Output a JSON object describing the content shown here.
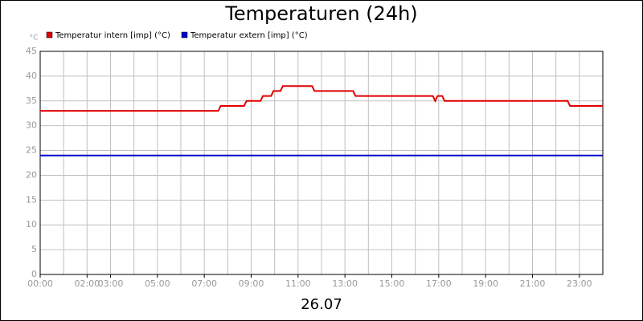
{
  "chart_data": {
    "type": "line",
    "title": "Temperaturen (24h)",
    "y_unit": "°C",
    "x_caption": "26.07",
    "xlim": [
      0,
      24
    ],
    "ylim": [
      0,
      45
    ],
    "yticks": [
      0,
      5,
      10,
      15,
      20,
      25,
      30,
      35,
      40,
      45
    ],
    "xticks": [
      {
        "value": 0,
        "label": "00:00"
      },
      {
        "value": 2,
        "label": "02:00"
      },
      {
        "value": 3,
        "label": "03:00"
      },
      {
        "value": 5,
        "label": "05:00"
      },
      {
        "value": 7,
        "label": "07:00"
      },
      {
        "value": 9,
        "label": "09:00"
      },
      {
        "value": 11,
        "label": "11:00"
      },
      {
        "value": 13,
        "label": "13:00"
      },
      {
        "value": 15,
        "label": "15:00"
      },
      {
        "value": 17,
        "label": "17:00"
      },
      {
        "value": 19,
        "label": "19:00"
      },
      {
        "value": 21,
        "label": "21:00"
      },
      {
        "value": 23,
        "label": "23:00"
      }
    ],
    "xgrid": [
      0,
      1,
      2,
      3,
      4,
      5,
      6,
      7,
      8,
      9,
      10,
      11,
      12,
      13,
      14,
      15,
      16,
      17,
      18,
      19,
      20,
      21,
      22,
      23,
      24
    ],
    "grid": true,
    "series": [
      {
        "name": "Temperatur intern [imp] (°C)",
        "color": "#e00000",
        "x": [
          0,
          7.6,
          7.7,
          8.7,
          8.8,
          9.4,
          9.5,
          9.85,
          9.95,
          10.25,
          10.35,
          11.6,
          11.7,
          13.35,
          13.45,
          16.75,
          16.85,
          16.95,
          17.15,
          17.25,
          22.5,
          22.6,
          24
        ],
        "values": [
          33,
          33,
          34,
          34,
          35,
          35,
          36,
          36,
          37,
          37,
          38,
          38,
          37,
          37,
          36,
          36,
          35,
          36,
          36,
          35,
          35,
          34,
          34
        ]
      },
      {
        "name": "Temperatur extern [imp] (°C)",
        "color": "#0000cc",
        "x": [
          0,
          24
        ],
        "values": [
          24,
          24
        ]
      }
    ]
  }
}
